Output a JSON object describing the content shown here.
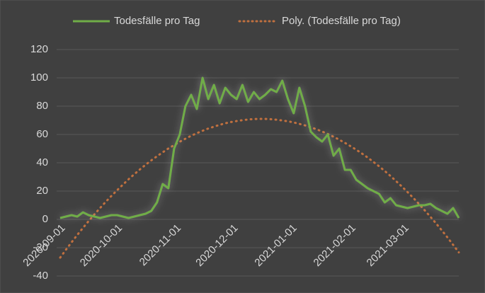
{
  "chart_data": {
    "type": "line",
    "x": [
      "2020-09-01",
      "2020-09-04",
      "2020-09-07",
      "2020-09-10",
      "2020-09-13",
      "2020-09-16",
      "2020-09-19",
      "2020-09-22",
      "2020-09-25",
      "2020-09-28",
      "2020-10-01",
      "2020-10-04",
      "2020-10-07",
      "2020-10-10",
      "2020-10-13",
      "2020-10-16",
      "2020-10-19",
      "2020-10-22",
      "2020-10-25",
      "2020-10-28",
      "2020-10-31",
      "2020-11-03",
      "2020-11-06",
      "2020-11-09",
      "2020-11-12",
      "2020-11-15",
      "2020-11-18",
      "2020-11-21",
      "2020-11-24",
      "2020-11-27",
      "2020-11-30",
      "2020-12-03",
      "2020-12-06",
      "2020-12-09",
      "2020-12-12",
      "2020-12-15",
      "2020-12-18",
      "2020-12-21",
      "2020-12-24",
      "2020-12-27",
      "2020-12-30",
      "2021-01-02",
      "2021-01-05",
      "2021-01-08",
      "2021-01-11",
      "2021-01-14",
      "2021-01-17",
      "2021-01-20",
      "2021-01-23",
      "2021-01-26",
      "2021-01-29",
      "2021-02-01",
      "2021-02-04",
      "2021-02-07",
      "2021-02-10",
      "2021-02-13",
      "2021-02-16",
      "2021-02-19",
      "2021-02-22",
      "2021-02-25",
      "2021-02-28",
      "2021-03-03",
      "2021-03-06",
      "2021-03-09",
      "2021-03-12",
      "2021-03-15",
      "2021-03-18",
      "2021-03-21",
      "2021-03-24",
      "2021-03-27",
      "2021-03-30"
    ],
    "series": [
      {
        "name": "Todesfälle pro Tag",
        "color": "#70ad47",
        "style": "solid",
        "values": [
          1,
          2,
          3,
          2,
          5,
          3,
          2,
          1,
          2,
          3,
          3,
          2,
          1,
          2,
          3,
          4,
          6,
          12,
          25,
          22,
          50,
          60,
          80,
          88,
          78,
          100,
          85,
          95,
          82,
          93,
          88,
          85,
          95,
          83,
          90,
          85,
          88,
          92,
          90,
          98,
          85,
          75,
          93,
          80,
          62,
          58,
          55,
          60,
          45,
          50,
          35,
          35,
          28,
          25,
          22,
          20,
          18,
          12,
          15,
          10,
          9,
          8,
          9,
          10,
          10,
          11,
          8,
          6,
          4,
          8,
          1
        ]
      },
      {
        "name": "Poly. (Todesfälle pro Tag)",
        "color": "#c0703f",
        "style": "dotted",
        "values": [
          -27.0,
          -21.5,
          -16.2,
          -11.0,
          -6.0,
          -1.2,
          3.5,
          8.0,
          12.4,
          16.6,
          20.6,
          24.5,
          28.3,
          31.9,
          35.3,
          38.6,
          41.7,
          44.6,
          47.4,
          50.1,
          52.5,
          54.9,
          57.0,
          59.1,
          60.9,
          62.6,
          64.2,
          65.5,
          66.8,
          67.9,
          68.8,
          69.5,
          70.1,
          70.6,
          70.9,
          71.0,
          71.0,
          70.8,
          70.4,
          69.9,
          69.3,
          68.5,
          67.5,
          66.4,
          65.1,
          63.7,
          62.1,
          60.3,
          58.4,
          56.3,
          54.1,
          51.7,
          49.2,
          46.5,
          43.7,
          40.6,
          37.5,
          34.2,
          30.7,
          27.0,
          23.2,
          19.3,
          15.2,
          10.9,
          6.5,
          1.9,
          -2.8,
          -7.7,
          -12.7,
          -18.0,
          -23.3
        ]
      }
    ],
    "xlim": [
      "2020-09-01",
      "2021-03-30"
    ],
    "xticks": [
      "2020-09-01",
      "2020-10-01",
      "2020-11-01",
      "2020-12-01",
      "2021-01-01",
      "2021-02-01",
      "2021-03-01"
    ],
    "ylim": [
      -40,
      120
    ],
    "yticks": [
      -40,
      -20,
      0,
      20,
      40,
      60,
      80,
      100,
      120
    ],
    "grid": true,
    "legend": "top"
  }
}
